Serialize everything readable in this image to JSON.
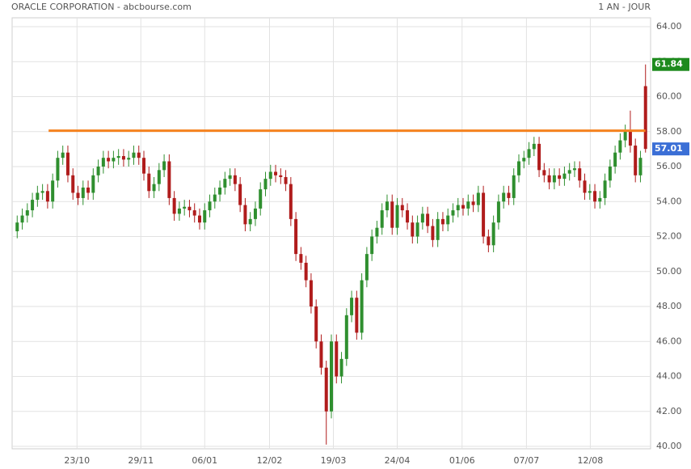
{
  "chart_data": {
    "type": "candlestick",
    "title": "ORACLE CORPORATION - abcbourse.com",
    "period": "1 AN - JOUR",
    "up_color": "#2f8f2f",
    "down_color": "#b01c1c",
    "open": [
      52.3,
      52.8,
      53.2,
      53.5,
      54.1,
      54.5,
      54.6,
      54,
      55.2,
      56.5,
      56.8,
      55.5,
      54.5,
      54.2,
      54.8,
      54.5,
      55.5,
      56,
      56.5,
      56.3,
      56.5,
      56.6,
      56.4,
      56.5,
      56.8,
      56.5,
      55.6,
      54.6,
      55,
      55.8,
      56.3,
      54.2,
      53.3,
      53.6,
      53.7,
      53.5,
      53.2,
      52.8,
      53.5,
      54,
      54.4,
      54.8,
      55.3,
      55.5,
      55,
      53.8,
      52.7,
      53,
      53.6,
      54.7,
      55.3,
      55.7,
      55.5,
      55.4,
      55,
      53,
      51,
      50.5,
      49.5,
      48,
      46,
      44.5,
      42,
      46,
      44,
      45,
      47.5,
      48.5,
      46.5,
      49.5,
      51,
      52,
      52.5,
      53.5,
      54,
      52.5,
      53.8,
      53.5,
      52.8,
      52,
      52.8,
      53.3,
      52.6,
      51.8,
      53,
      52.7,
      53.2,
      53.5,
      53.8,
      53.6,
      54,
      53.8,
      54.5,
      52,
      51.5,
      52.8,
      54,
      54.5,
      54.2,
      55.5,
      56.3,
      56.5,
      57,
      57.3,
      55.8,
      55.5,
      55.1,
      55.5,
      55.3,
      55.6,
      55.8,
      55.9,
      55.2,
      54.5,
      54.6,
      54,
      54.2,
      55.2,
      56,
      56.8,
      57.5,
      58,
      57.2,
      55.5,
      60.6
    ],
    "high": [
      53.2,
      53.6,
      53.9,
      54.5,
      54.9,
      55,
      55,
      55.6,
      56.9,
      57.2,
      57.2,
      55.9,
      54.9,
      55.2,
      55.2,
      55.9,
      56.4,
      56.9,
      56.9,
      56.9,
      57,
      57,
      56.9,
      57.2,
      57.2,
      56.9,
      56,
      55.4,
      56.2,
      56.7,
      56.7,
      54.6,
      54,
      54.1,
      54.1,
      53.9,
      53.6,
      53.9,
      54.4,
      54.8,
      55.2,
      55.7,
      55.9,
      55.9,
      55.4,
      54.2,
      53.4,
      54,
      55.1,
      55.7,
      56.1,
      56.1,
      55.9,
      55.8,
      55.4,
      53.4,
      51.4,
      50.9,
      49.9,
      48.4,
      46.4,
      44.9,
      46.4,
      46.4,
      45.4,
      47.9,
      48.9,
      48.9,
      49.9,
      51.4,
      52.4,
      52.9,
      53.9,
      54.4,
      54.4,
      54.2,
      54.2,
      53.9,
      53.2,
      53.2,
      53.7,
      53.7,
      53,
      53.4,
      53.4,
      53.6,
      53.9,
      54.2,
      54.2,
      54.4,
      54.4,
      54.9,
      54.9,
      52.4,
      53.2,
      54.4,
      54.9,
      54.9,
      55.9,
      56.7,
      56.9,
      57.4,
      57.7,
      57.7,
      56.2,
      55.9,
      55.9,
      55.9,
      56,
      56.2,
      56.3,
      56.3,
      55.6,
      55,
      55,
      54.6,
      55.6,
      56.4,
      57.2,
      57.9,
      58.4,
      59.2,
      57.6,
      56.9,
      61.84
    ],
    "low": [
      51.9,
      52.4,
      52.8,
      53.1,
      53.7,
      54.1,
      53.6,
      53.6,
      54.8,
      56.1,
      55.1,
      54.1,
      53.8,
      53.8,
      54.1,
      54.1,
      55.1,
      55.6,
      55.9,
      55.9,
      56.1,
      56,
      56,
      56.1,
      56.1,
      55.2,
      54.2,
      54.2,
      54.6,
      55.4,
      53.8,
      52.9,
      52.9,
      53.2,
      53.1,
      52.8,
      52.4,
      52.4,
      53.1,
      53.6,
      54,
      54.4,
      54.9,
      54.6,
      53.4,
      52.3,
      52.3,
      52.6,
      53.2,
      54.3,
      54.9,
      55.1,
      55,
      54.6,
      52.6,
      50.6,
      50.1,
      49.1,
      47.6,
      45.6,
      44.1,
      40.1,
      41.6,
      43.6,
      43.6,
      44.6,
      47.1,
      46.1,
      46.1,
      49.1,
      50.6,
      51.6,
      52.1,
      53.1,
      52.1,
      52.1,
      53.1,
      52.4,
      51.6,
      51.6,
      52.4,
      52.2,
      51.4,
      51.4,
      52.3,
      52.3,
      52.8,
      53.1,
      53.2,
      53.2,
      53.4,
      53.4,
      51.6,
      51.1,
      51.1,
      52.4,
      53.6,
      53.8,
      53.8,
      55.1,
      55.9,
      56.1,
      56.6,
      55.4,
      55.1,
      54.7,
      54.7,
      54.9,
      54.9,
      55.2,
      55.4,
      54.8,
      54.1,
      54.1,
      53.6,
      53.6,
      53.8,
      54.8,
      55.6,
      56.4,
      57.1,
      56.8,
      55.1,
      55.1,
      56.8
    ],
    "close": [
      52.8,
      53.2,
      53.5,
      54.1,
      54.5,
      54.6,
      54,
      55.2,
      56.5,
      56.8,
      55.5,
      54.5,
      54.2,
      54.8,
      54.5,
      55.5,
      56,
      56.5,
      56.3,
      56.5,
      56.6,
      56.4,
      56.5,
      56.8,
      56.5,
      55.6,
      54.6,
      55,
      55.8,
      56.3,
      54.2,
      53.3,
      53.6,
      53.7,
      53.5,
      53.2,
      52.8,
      53.5,
      54,
      54.4,
      54.8,
      55.3,
      55.5,
      55,
      53.8,
      52.7,
      53,
      53.6,
      54.7,
      55.3,
      55.7,
      55.5,
      55.4,
      55,
      53,
      51,
      50.5,
      49.5,
      48,
      46,
      44.5,
      42,
      46,
      44,
      45,
      47.5,
      48.5,
      46.5,
      49.5,
      51,
      52,
      52.5,
      53.5,
      54,
      52.5,
      53.8,
      53.5,
      52.8,
      52,
      52.8,
      53.3,
      52.6,
      51.8,
      53,
      52.7,
      53.2,
      53.5,
      53.8,
      53.6,
      54,
      53.8,
      54.5,
      52,
      51.5,
      52.8,
      54,
      54.5,
      54.2,
      55.5,
      56.3,
      56.5,
      57,
      57.3,
      55.8,
      55.5,
      55.1,
      55.5,
      55.3,
      55.6,
      55.8,
      55.9,
      55.2,
      54.5,
      54.6,
      54,
      54.2,
      55.2,
      56,
      56.8,
      57.5,
      58,
      57.2,
      55.5,
      56.5,
      57.01
    ],
    "xlim": [
      -1,
      125
    ],
    "xticks": [
      {
        "value": 11.8,
        "label": "23/10"
      },
      {
        "value": 24.4,
        "label": "29/11"
      },
      {
        "value": 37.0,
        "label": "06/01"
      },
      {
        "value": 49.8,
        "label": "12/02"
      },
      {
        "value": 62.4,
        "label": "19/03"
      },
      {
        "value": 75.0,
        "label": "24/04"
      },
      {
        "value": 87.8,
        "label": "01/06"
      },
      {
        "value": 100.5,
        "label": "07/07"
      },
      {
        "value": 113.1,
        "label": "12/08"
      }
    ],
    "ylim": [
      40,
      64
    ],
    "yticks": [
      {
        "value": 40,
        "label": "40.00"
      },
      {
        "value": 42,
        "label": "42.00"
      },
      {
        "value": 44,
        "label": "44.00"
      },
      {
        "value": 46,
        "label": "46.00"
      },
      {
        "value": 48,
        "label": "48.00"
      },
      {
        "value": 50,
        "label": "50.00"
      },
      {
        "value": 52,
        "label": "52.00"
      },
      {
        "value": 54,
        "label": "54.00"
      },
      {
        "value": 56,
        "label": "56.00"
      },
      {
        "value": 58,
        "label": "58.00"
      },
      {
        "value": 60,
        "label": "60.00"
      },
      {
        "value": 62,
        "label": "62.00"
      },
      {
        "value": 64,
        "label": "64.00"
      }
    ],
    "grid": true,
    "level_line": {
      "value": 58.05,
      "from_x": 6.2,
      "color": "#f5821f"
    },
    "last_labels": [
      {
        "value": 61.84,
        "color": "#1d8a1d"
      },
      {
        "value": 57.01,
        "color": "#3b6fd6"
      }
    ]
  }
}
